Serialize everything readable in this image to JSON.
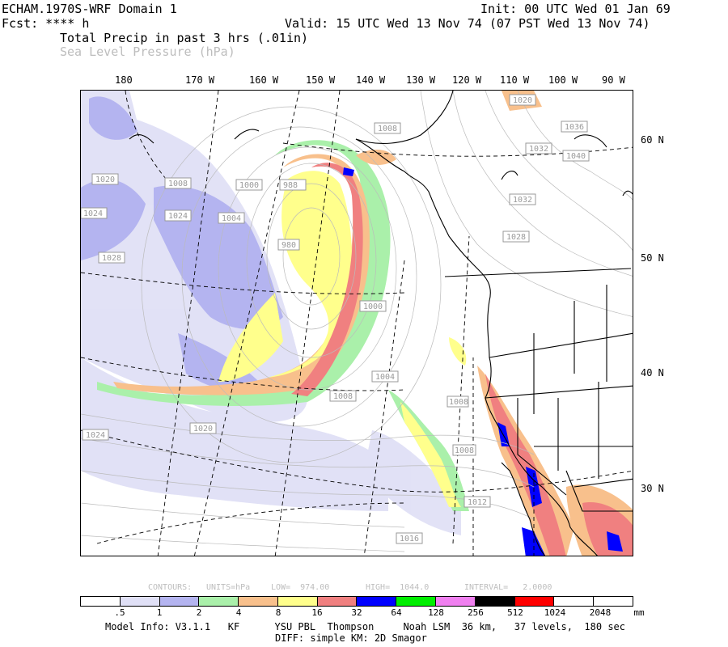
{
  "header": {
    "model": "ECHAM.1970S-WRF Domain 1",
    "init": "Init: 00 UTC Wed 01 Jan 69",
    "fcst": "Fcst: **** h",
    "valid": "Valid: 15 UTC Wed 13 Nov 74 (07 PST Wed 13 Nov 74)",
    "field1": "Total Precip in past 3 hrs (.01in)",
    "field2": "Sea Level Pressure (hPa)"
  },
  "lon_labels": [
    "180",
    "170 W",
    "160 W",
    "150 W",
    "140 W",
    "130 W",
    "120 W",
    "110 W",
    "100 W",
    "90 W"
  ],
  "lat_labels": [
    "60 N",
    "50 N",
    "40 N",
    "30 N"
  ],
  "isobar_labels": [
    "1008",
    "1020",
    "1036",
    "1032",
    "1040",
    "1024",
    "1032",
    "1028",
    "1020",
    "1008",
    "1024",
    "1000",
    "1028",
    "1004",
    "988",
    "980",
    "1000",
    "1004",
    "1008",
    "1020",
    "1024",
    "1008",
    "1012",
    "1016",
    "1008"
  ],
  "contours": {
    "label": "CONTOURS:",
    "units": "UNITS=hPa",
    "low": "LOW=  974.00",
    "high": "HIGH=  1044.0",
    "interval": "INTERVAL=   2.0000"
  },
  "legend": {
    "labels": [
      ".5",
      "1",
      "2",
      "4",
      "8",
      "16",
      "32",
      "64",
      "128",
      "256",
      "512",
      "1024",
      "2048",
      "mm"
    ],
    "colors": [
      "#ffffff",
      "#e0e0f6",
      "#b4b4f0",
      "#aaf0aa",
      "#f8c08c",
      "#ffff8c",
      "#f08080",
      "#0000ff",
      "#00ee00",
      "#f080f0",
      "#000000",
      "#ff0000",
      "#ffffff",
      "#ffffff"
    ]
  },
  "footer": {
    "line1": "Model Info: V3.1.1   KF      YSU PBL  Thompson     Noah LSM  36 km,   37 levels,  180 sec",
    "line2": "DIFF: simple KM: 2D Smagor"
  },
  "colors": {
    "precip_light": "#e0e0f6",
    "precip_lavender": "#b4b4f0",
    "precip_green": "#aaf0aa",
    "precip_orange": "#f8c08c",
    "precip_yellow": "#ffff8c",
    "precip_red": "#f08080",
    "precip_blue": "#0000ff",
    "isobar": "#bbbbbb"
  }
}
